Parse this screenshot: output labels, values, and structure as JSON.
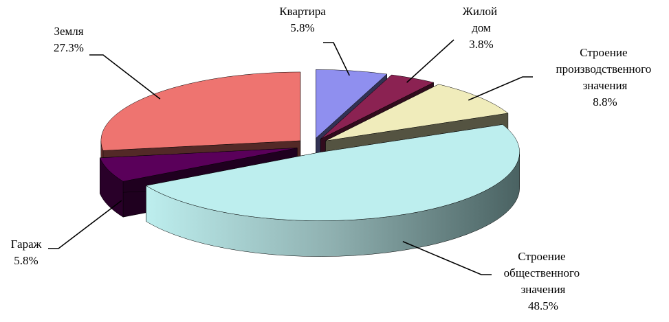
{
  "chart_data": {
    "type": "pie3d",
    "categories": [
      "Квартира",
      "Жилой дом",
      "Строение производственного значения",
      "Строение общественного значения",
      "Гараж",
      "Земля"
    ],
    "values": [
      5.8,
      3.8,
      8.8,
      48.5,
      5.8,
      27.3
    ],
    "value_labels": [
      "5.8%",
      "3.8%",
      "8.8%",
      "48.5%",
      "5.8%",
      "27.3%"
    ],
    "colors": [
      "#8f8fef",
      "#8b2252",
      "#f0ecbb",
      "#bdeeee",
      "#5a005a",
      "#ee7470"
    ]
  }
}
